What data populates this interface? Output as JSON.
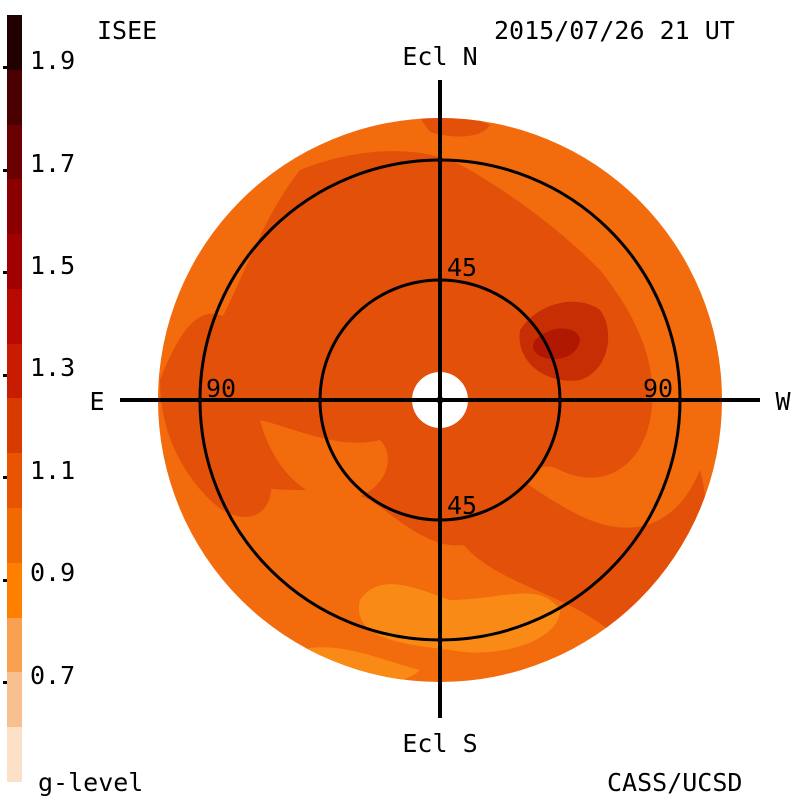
{
  "header": {
    "observatory": "ISEE",
    "timestamp": "2015/07/26 21 UT"
  },
  "footer": {
    "colorbar_title": "g-level",
    "credit": "CASS/UCSD"
  },
  "colorbar": {
    "labels": [
      "1.9",
      "1.7",
      "1.5",
      "1.3",
      "1.1",
      "0.9",
      "0.7"
    ],
    "colors": [
      "#200000",
      "#4a0000",
      "#6a0000",
      "#8a0000",
      "#a00000",
      "#b80a00",
      "#c81c00",
      "#d83a00",
      "#e85400",
      "#f06a00",
      "#ff8000",
      "#f9a050",
      "#f8c08e",
      "#fde0c8"
    ]
  },
  "map": {
    "top_label": "Ecl N",
    "bottom_label": "Ecl S",
    "left_label": "E",
    "right_label": "W",
    "inner_ring_top_label": "45",
    "inner_ring_bottom_label": "45",
    "outer_ring_left_label": "90",
    "outer_ring_right_label": "90",
    "base_color": "#f26b0c",
    "mid_color": "#e3500a",
    "dark_color": "#c82e04",
    "peak_color": "#b01802",
    "light_color": "#fa8a16"
  }
}
